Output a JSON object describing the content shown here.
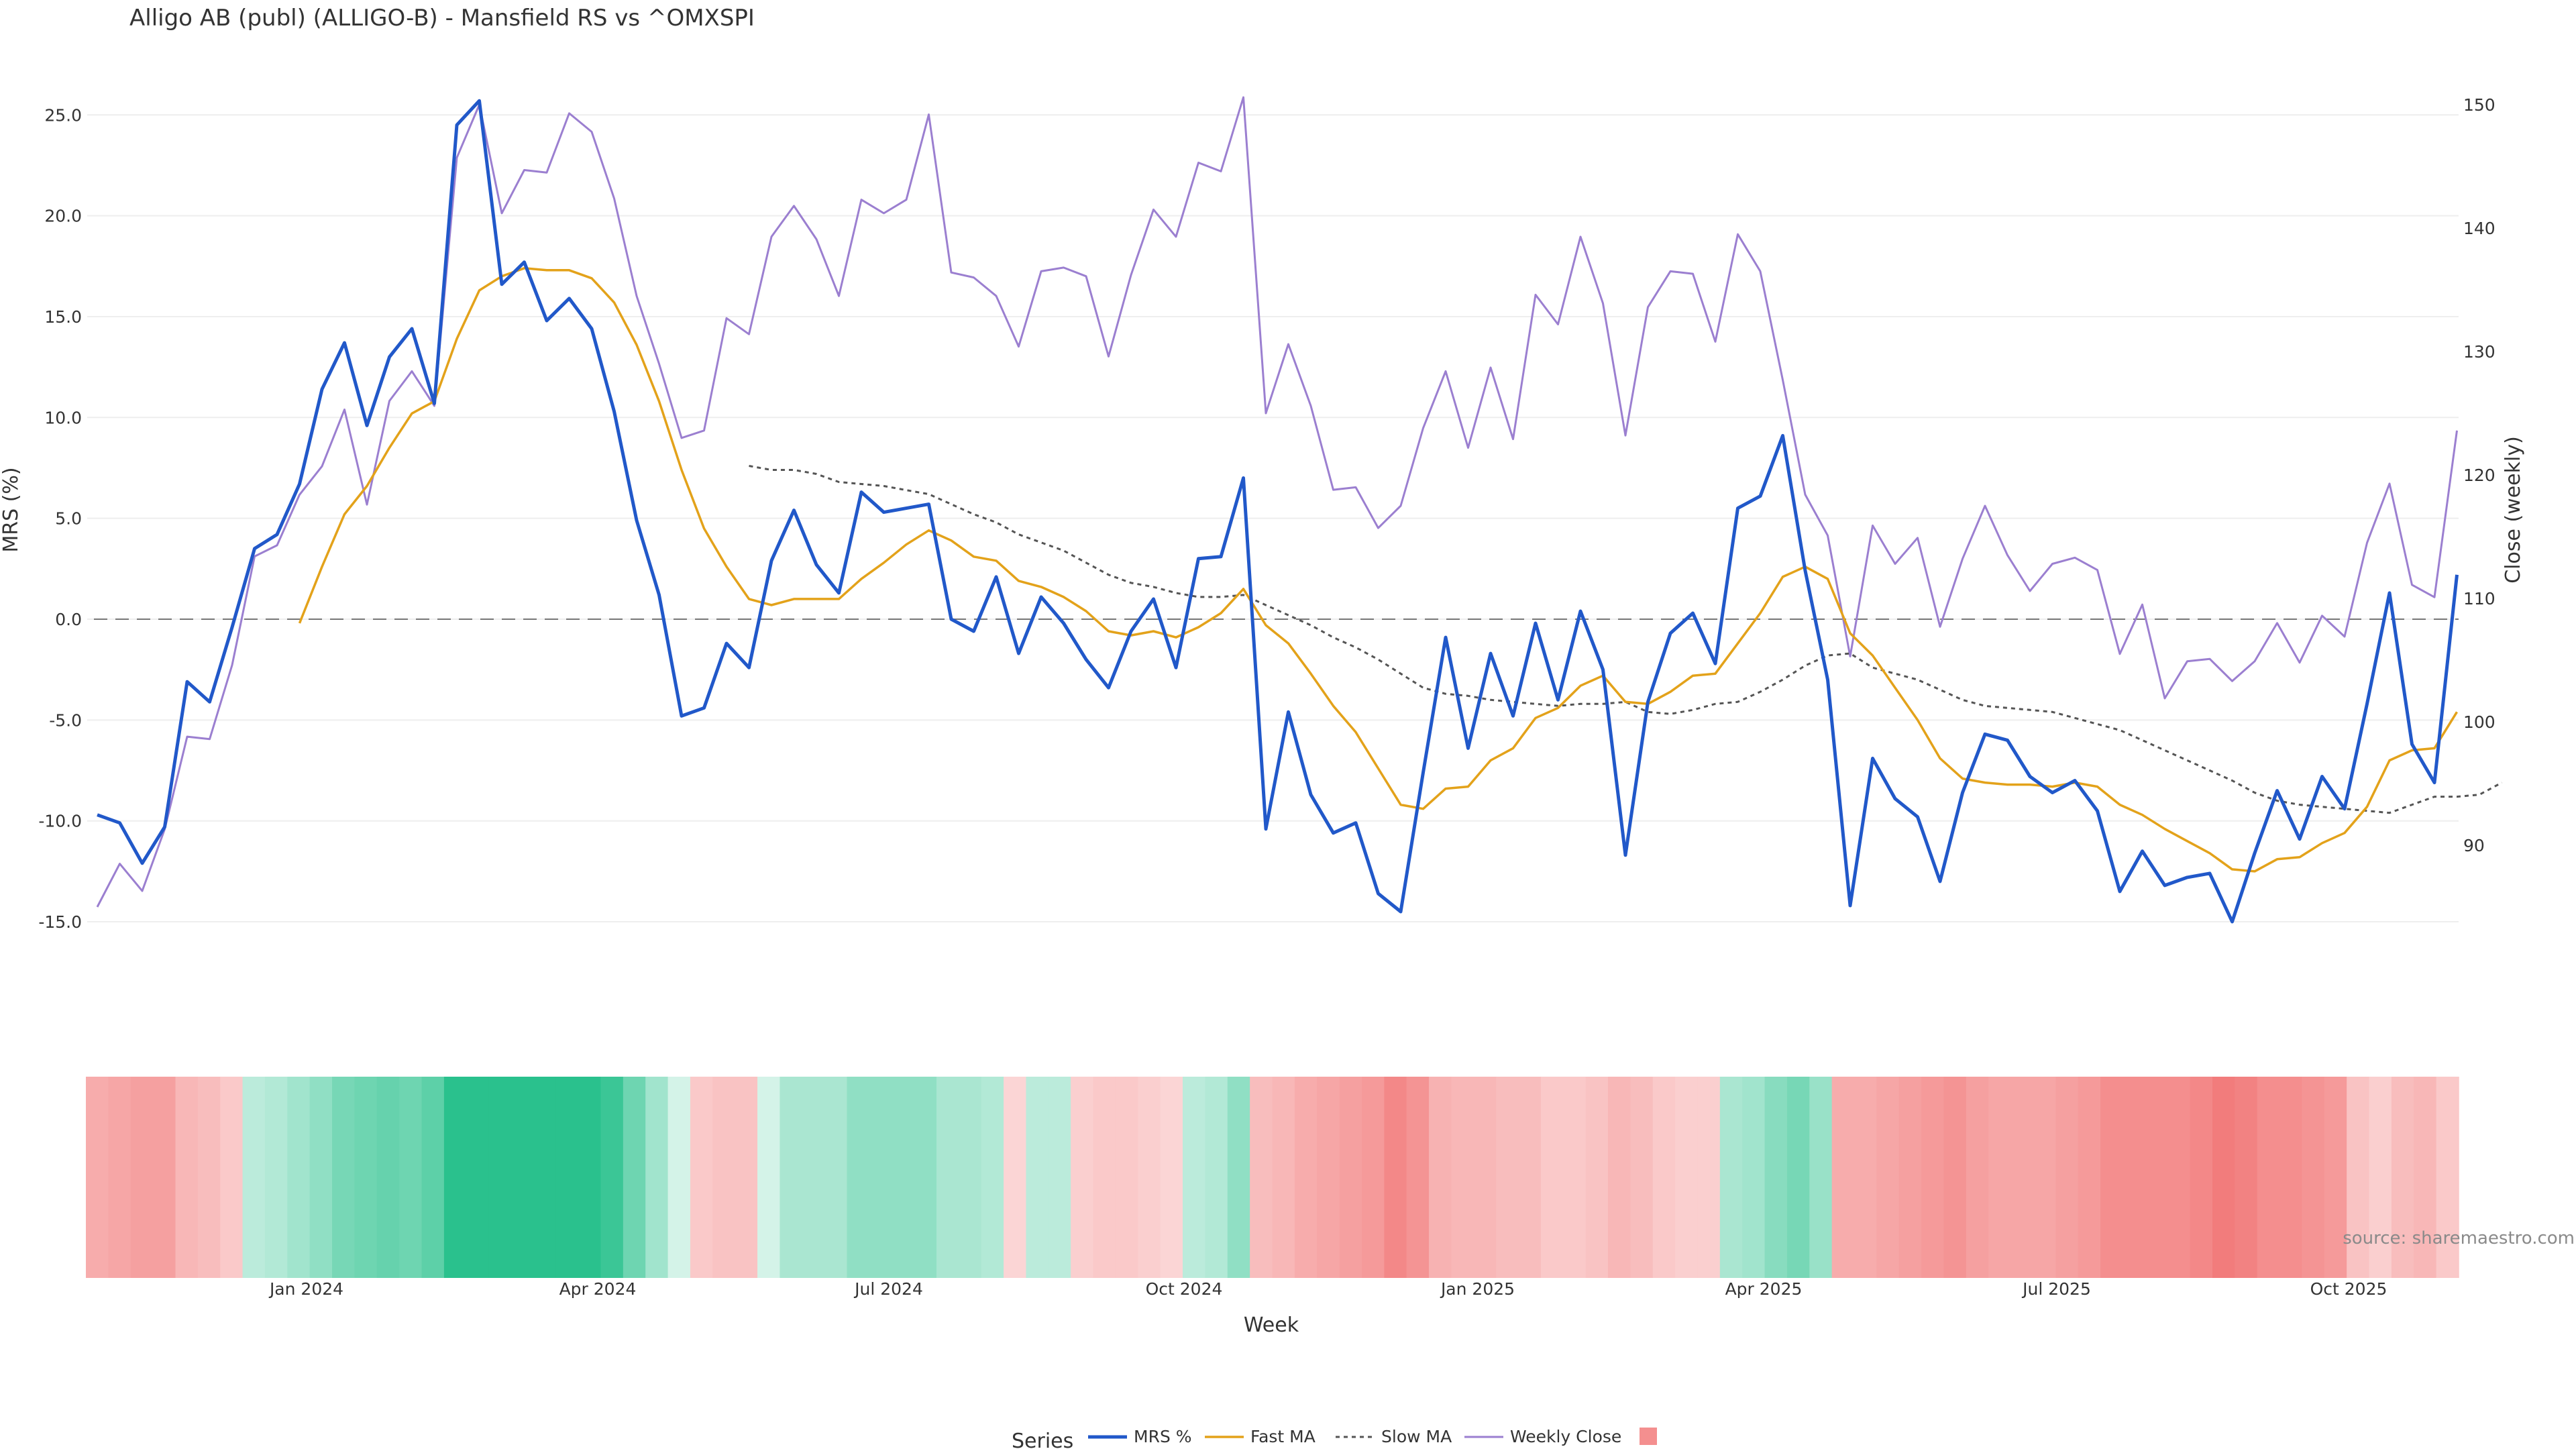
{
  "chart_data": {
    "type": "line",
    "title": "Alligo AB (publ) (ALLIGO-B) - Mansfield RS vs ^OMXSPI",
    "xlabel": "Week",
    "ylabel_left": "MRS (%)",
    "ylabel_right": "Close (weekly)",
    "ylim_left": [
      -15.0,
      25.0
    ],
    "ylim_right": [
      85,
      150
    ],
    "yticks_left": [
      "25.0",
      "20.0",
      "15.0",
      "10.0",
      "5.0",
      "0.0",
      "-5.0",
      "-10.0",
      "-15.0"
    ],
    "yticks_right": [
      "150",
      "140",
      "130",
      "120",
      "110",
      "100",
      "90"
    ],
    "xticks": [
      "Jan 2024",
      "Apr 2024",
      "Jul 2024",
      "Oct 2024",
      "Jan 2025",
      "Apr 2025",
      "Jul 2025",
      "Oct 2025"
    ],
    "zero_line": true,
    "grid": true,
    "legend_title": "Series",
    "legend_position": "bottom-center",
    "source": "source: sharemaestro.com",
    "colors": {
      "mrs": "#2158c9",
      "fast": "#e3a21a",
      "slow": "#555555",
      "close": "#9b7fd0",
      "heat_pos": "#2ac18d",
      "heat_neg": "#f06a6a"
    },
    "series": [
      {
        "name": "MRS %",
        "axis": "left",
        "style": "solid",
        "values": [
          -9.7,
          -10.1,
          -12.1,
          -10.3,
          -3.1,
          -4.1,
          -0.4,
          3.5,
          4.2,
          6.7,
          11.4,
          13.7,
          9.6,
          13.0,
          14.4,
          10.7,
          24.5,
          25.7,
          16.6,
          17.7,
          14.8,
          15.9,
          14.4,
          10.3,
          4.9,
          1.2,
          -4.8,
          -4.4,
          -1.2,
          -2.4,
          2.9,
          5.4,
          2.7,
          1.3,
          6.3,
          5.3,
          5.5,
          5.7,
          0.0,
          -0.6,
          2.1,
          -1.7,
          1.1,
          -0.2,
          -2.0,
          -3.4,
          -0.6,
          1.0,
          -2.4,
          3.0,
          3.1,
          7.0,
          -10.4,
          -4.6,
          -8.7,
          -10.6,
          -10.1,
          -13.6,
          -14.5,
          -7.6,
          -0.9,
          -6.4,
          -1.7,
          -4.8,
          -0.2,
          -4.0,
          0.4,
          -2.5,
          -11.7,
          -4.1,
          -0.7,
          0.3,
          -2.2,
          5.5,
          6.1,
          9.1,
          2.4,
          -3.0,
          -14.2,
          -6.9,
          -8.9,
          -9.8,
          -13.0,
          -8.6,
          -5.7,
          -6.0,
          -7.8,
          -8.6,
          -8.0,
          -9.5,
          -13.5,
          -11.5,
          -13.2,
          -12.8,
          -12.6,
          -15.0,
          -11.6,
          -8.5,
          -10.9,
          -7.8,
          -9.4,
          -4.2,
          1.3,
          -6.2,
          -8.1,
          2.2
        ]
      },
      {
        "name": "Fast MA",
        "axis": "left",
        "style": "solid",
        "start": 9,
        "values": [
          -0.2,
          2.6,
          5.2,
          6.6,
          8.5,
          10.2,
          10.8,
          13.9,
          16.3,
          17.0,
          17.4,
          17.3,
          17.3,
          16.9,
          15.7,
          13.6,
          10.8,
          7.4,
          4.5,
          2.6,
          1.0,
          0.7,
          1.0,
          1.0,
          1.0,
          2.0,
          2.8,
          3.7,
          4.4,
          3.9,
          3.1,
          2.9,
          1.9,
          1.6,
          1.1,
          0.4,
          -0.6,
          -0.8,
          -0.6,
          -0.9,
          -0.4,
          0.3,
          1.5,
          -0.3,
          -1.2,
          -2.7,
          -4.3,
          -5.6,
          -7.4,
          -9.2,
          -9.4,
          -8.4,
          -8.3,
          -7.0,
          -6.4,
          -4.9,
          -4.4,
          -3.3,
          -2.8,
          -4.1,
          -4.2,
          -3.6,
          -2.8,
          -2.7,
          -1.2,
          0.3,
          2.1,
          2.6,
          2.0,
          -0.7,
          -1.8,
          -3.4,
          -5.0,
          -6.9,
          -7.9,
          -8.1,
          -8.2,
          -8.2,
          -8.3,
          -8.1,
          -8.3,
          -9.2,
          -9.7,
          -10.4,
          -11.0,
          -11.6,
          -12.4,
          -12.5,
          -11.9,
          -11.8,
          -11.1,
          -10.6,
          -9.3,
          -7.0,
          -6.5,
          -6.4,
          -4.6
        ]
      },
      {
        "name": "Slow MA",
        "axis": "left",
        "style": "dotted",
        "start": 29,
        "values": [
          7.6,
          7.4,
          7.4,
          7.2,
          6.8,
          6.7,
          6.6,
          6.4,
          6.2,
          5.7,
          5.2,
          4.8,
          4.2,
          3.8,
          3.4,
          2.8,
          2.2,
          1.8,
          1.6,
          1.3,
          1.1,
          1.1,
          1.2,
          0.7,
          0.2,
          -0.3,
          -0.9,
          -1.4,
          -2.0,
          -2.7,
          -3.4,
          -3.7,
          -3.8,
          -4.0,
          -4.1,
          -4.2,
          -4.3,
          -4.2,
          -4.2,
          -4.1,
          -4.6,
          -4.7,
          -4.5,
          -4.2,
          -4.1,
          -3.6,
          -3.0,
          -2.3,
          -1.8,
          -1.7,
          -2.4,
          -2.7,
          -3.0,
          -3.5,
          -4.0,
          -4.3,
          -4.4,
          -4.5,
          -4.6,
          -4.9,
          -5.2,
          -5.5,
          -6.0,
          -6.5,
          -7.0,
          -7.5,
          -8.0,
          -8.6,
          -9.0,
          -9.2,
          -9.3,
          -9.4,
          -9.5,
          -9.6,
          -9.2,
          -8.8,
          -8.8,
          -8.7,
          -8.1
        ]
      },
      {
        "name": "Weekly Close",
        "axis": "right",
        "style": "solid",
        "values": [
          85.0,
          88.5,
          86.3,
          91.3,
          98.8,
          98.6,
          104.6,
          113.4,
          114.3,
          118.4,
          120.7,
          125.3,
          117.6,
          126.0,
          128.4,
          125.6,
          145.7,
          150.0,
          141.2,
          144.7,
          144.5,
          149.3,
          147.8,
          142.4,
          134.5,
          129.0,
          123.0,
          123.6,
          132.7,
          131.4,
          139.3,
          141.8,
          139.1,
          134.5,
          142.3,
          141.2,
          142.3,
          149.2,
          136.4,
          136.0,
          134.5,
          130.4,
          136.5,
          136.8,
          136.1,
          129.6,
          136.2,
          141.5,
          139.3,
          145.3,
          144.6,
          150.6,
          125.0,
          130.6,
          125.6,
          118.8,
          119.0,
          115.7,
          117.5,
          123.8,
          128.4,
          122.2,
          128.7,
          122.9,
          134.6,
          132.2,
          139.3,
          133.9,
          123.2,
          133.6,
          136.5,
          136.3,
          130.8,
          139.5,
          136.5,
          127.7,
          118.4,
          115.1,
          105.3,
          115.9,
          112.8,
          114.9,
          107.7,
          113.2,
          117.5,
          113.5,
          110.6,
          112.8,
          113.3,
          112.3,
          105.5,
          109.5,
          101.9,
          104.9,
          105.1,
          103.3,
          104.9,
          108.0,
          104.8,
          108.6,
          106.9,
          114.5,
          119.3,
          111.1,
          110.1,
          123.6
        ]
      }
    ],
    "heatmap": [
      -0.45,
      -0.5,
      -0.55,
      -0.55,
      -0.35,
      -0.3,
      -0.2,
      0.15,
      0.2,
      0.3,
      0.4,
      0.55,
      0.6,
      0.65,
      0.6,
      0.7,
      1.0,
      1.0,
      1.0,
      1.0,
      1.0,
      1.0,
      1.0,
      0.9,
      0.6,
      0.3,
      0.0,
      -0.2,
      -0.25,
      -0.25,
      0.0,
      0.25,
      0.25,
      0.25,
      0.4,
      0.4,
      0.4,
      0.4,
      0.25,
      0.25,
      0.2,
      -0.1,
      0.15,
      0.15,
      -0.15,
      -0.2,
      -0.2,
      -0.15,
      -0.1,
      0.15,
      0.2,
      0.4,
      -0.3,
      -0.35,
      -0.45,
      -0.5,
      -0.55,
      -0.6,
      -0.75,
      -0.65,
      -0.4,
      -0.35,
      -0.35,
      -0.3,
      -0.3,
      -0.2,
      -0.2,
      -0.25,
      -0.35,
      -0.3,
      -0.2,
      -0.15,
      -0.15,
      0.25,
      0.3,
      0.45,
      0.55,
      0.35,
      -0.45,
      -0.45,
      -0.5,
      -0.55,
      -0.6,
      -0.65,
      -0.55,
      -0.5,
      -0.5,
      -0.5,
      -0.55,
      -0.6,
      -0.7,
      -0.7,
      -0.7,
      -0.7,
      -0.75,
      -0.85,
      -0.8,
      -0.7,
      -0.7,
      -0.65,
      -0.6,
      -0.25,
      -0.15,
      -0.3,
      -0.35,
      -0.2
    ]
  }
}
